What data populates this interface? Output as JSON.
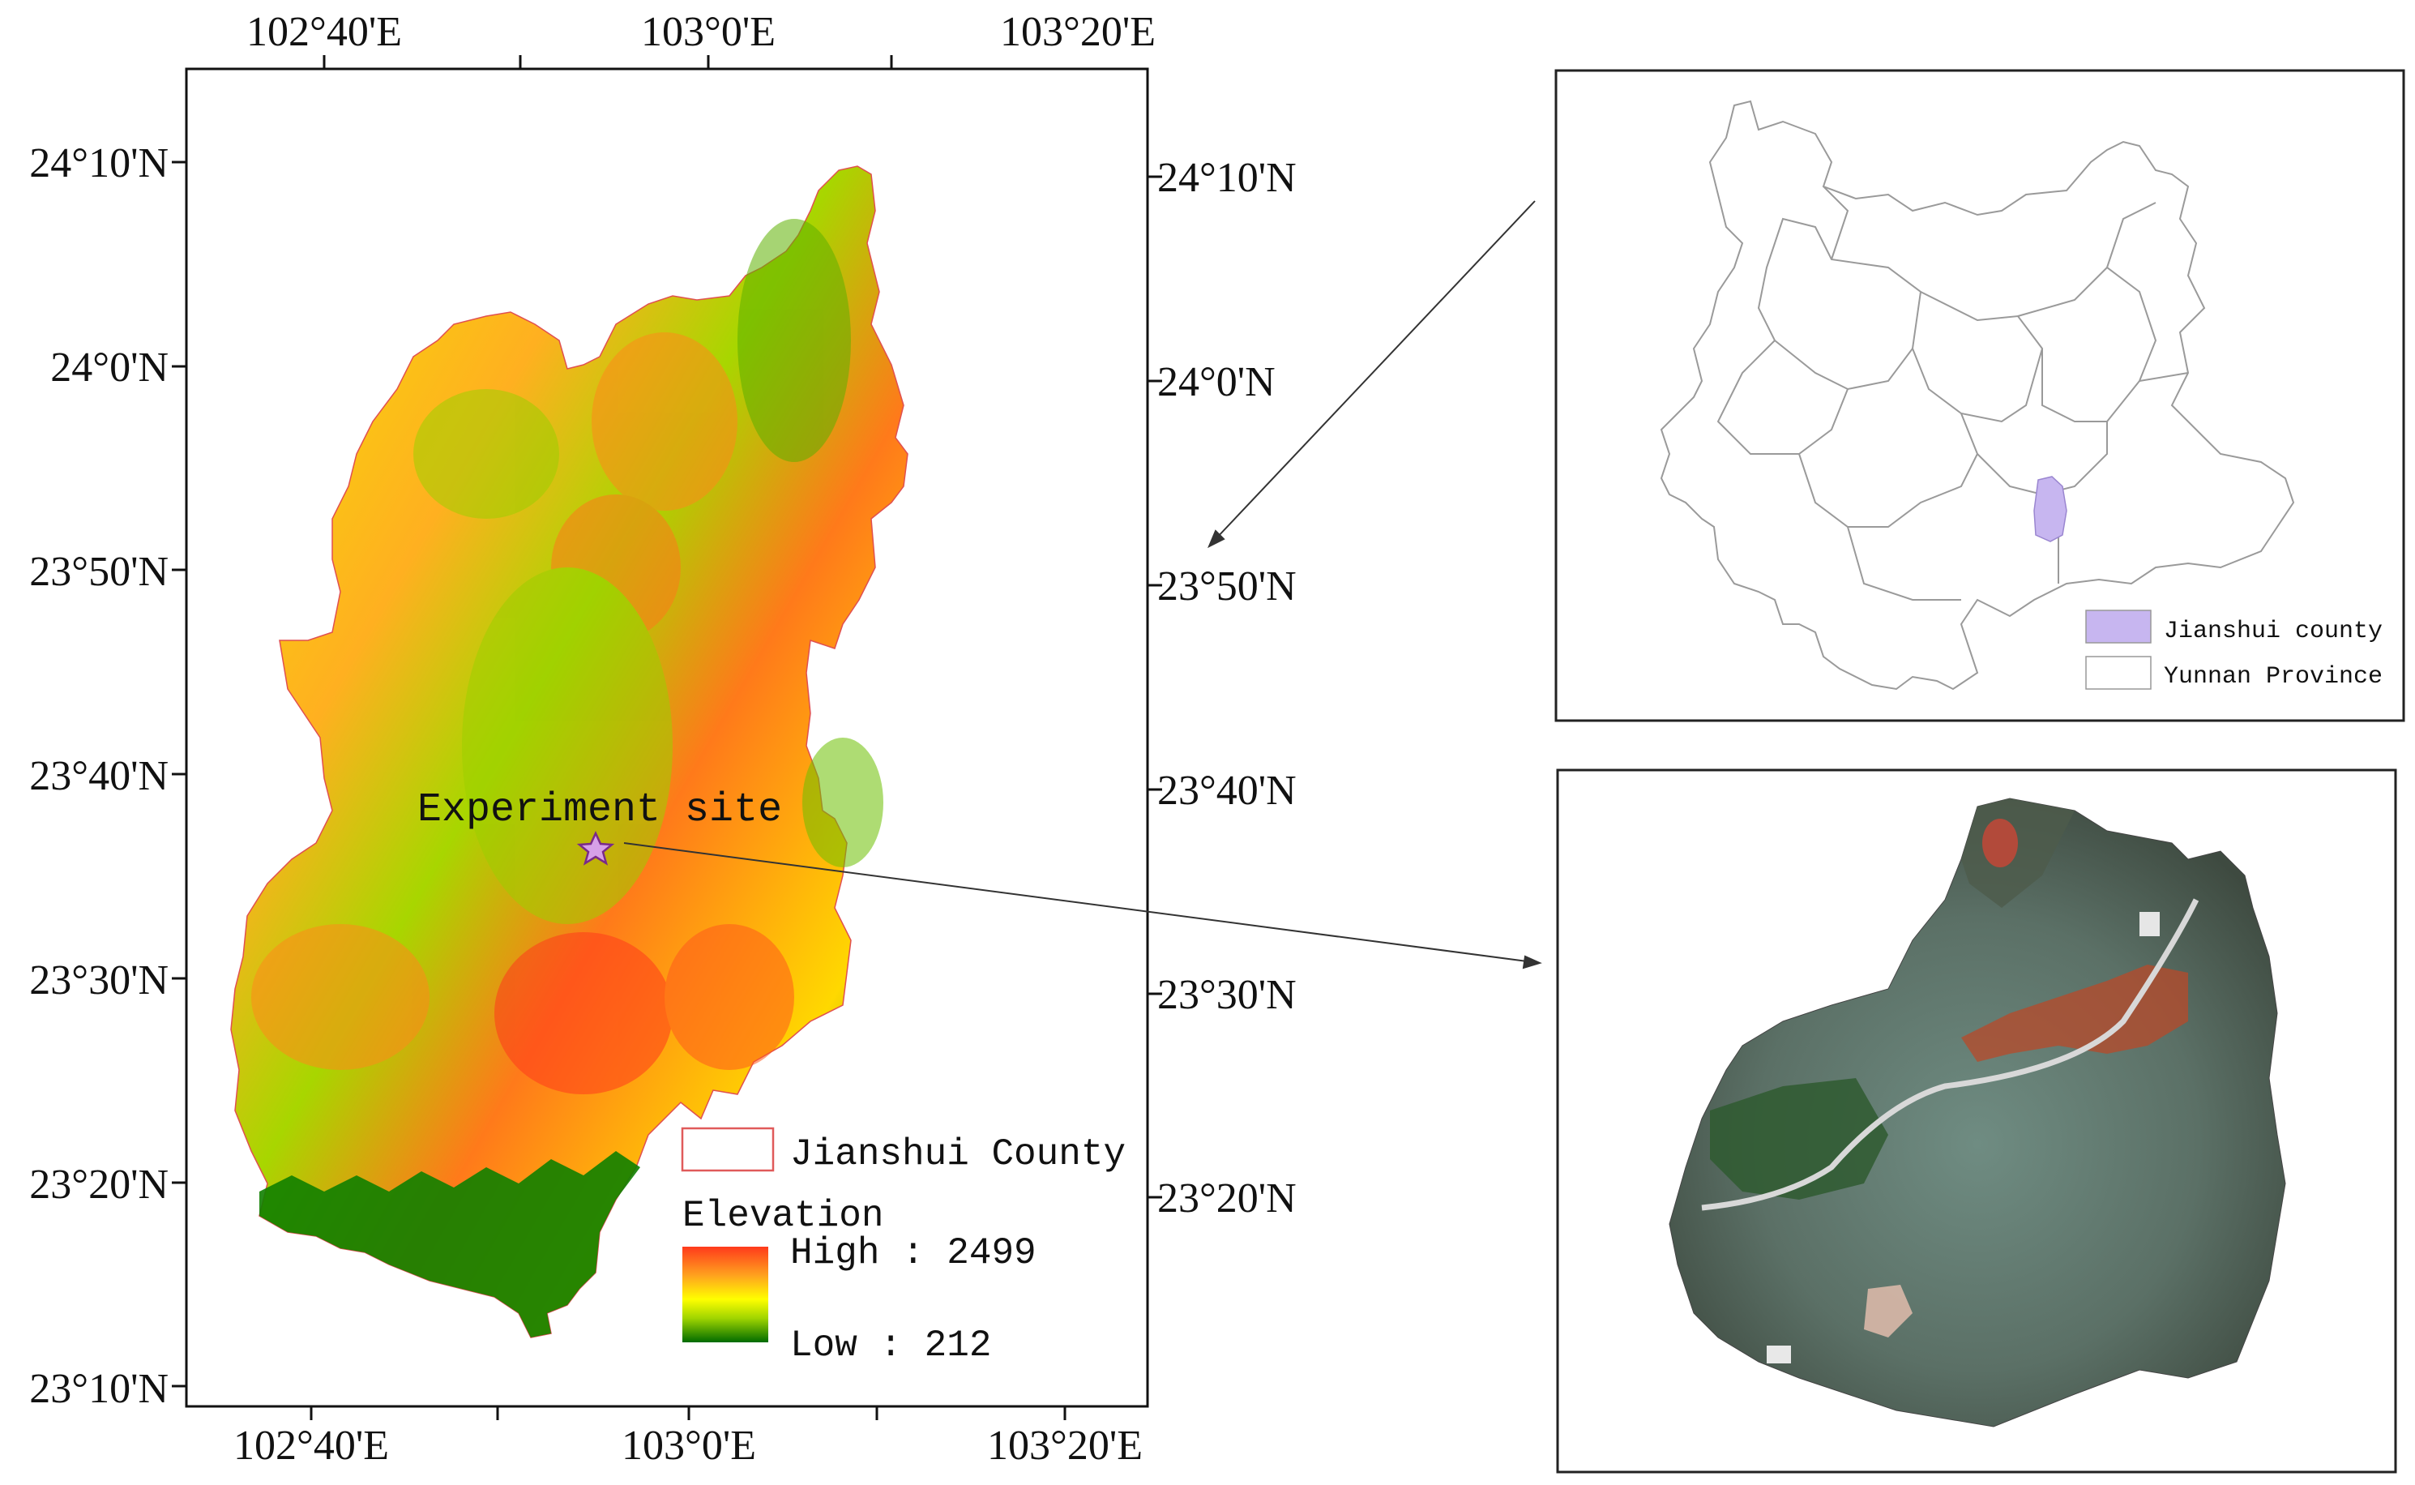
{
  "main_map": {
    "lon_labels": [
      "102°40'E",
      "103°0'E",
      "103°20'E"
    ],
    "lat_labels_left": [
      "24°10'N",
      "24°0'N",
      "23°50'N",
      "23°40'N",
      "23°30'N",
      "23°20'N",
      "23°10'N"
    ],
    "lat_labels_right": [
      "24°10'N",
      "24°0'N",
      "23°50'N",
      "23°40'N",
      "23°30'N",
      "23°20'N"
    ],
    "site_label": "Experiment site",
    "legend": {
      "county_label": "Jianshui County",
      "elevation_title": "Elevation",
      "high_label": "High : 2499",
      "low_label": "Low : 212",
      "ramp_colors": [
        "#ff3a1c",
        "#ffa21e",
        "#ffff00",
        "#9fd400",
        "#006b00"
      ]
    }
  },
  "province_map": {
    "legend": {
      "county_label": "Jianshui county",
      "province_label": "Yunnan Province",
      "county_color": "#c7b6f0"
    }
  }
}
